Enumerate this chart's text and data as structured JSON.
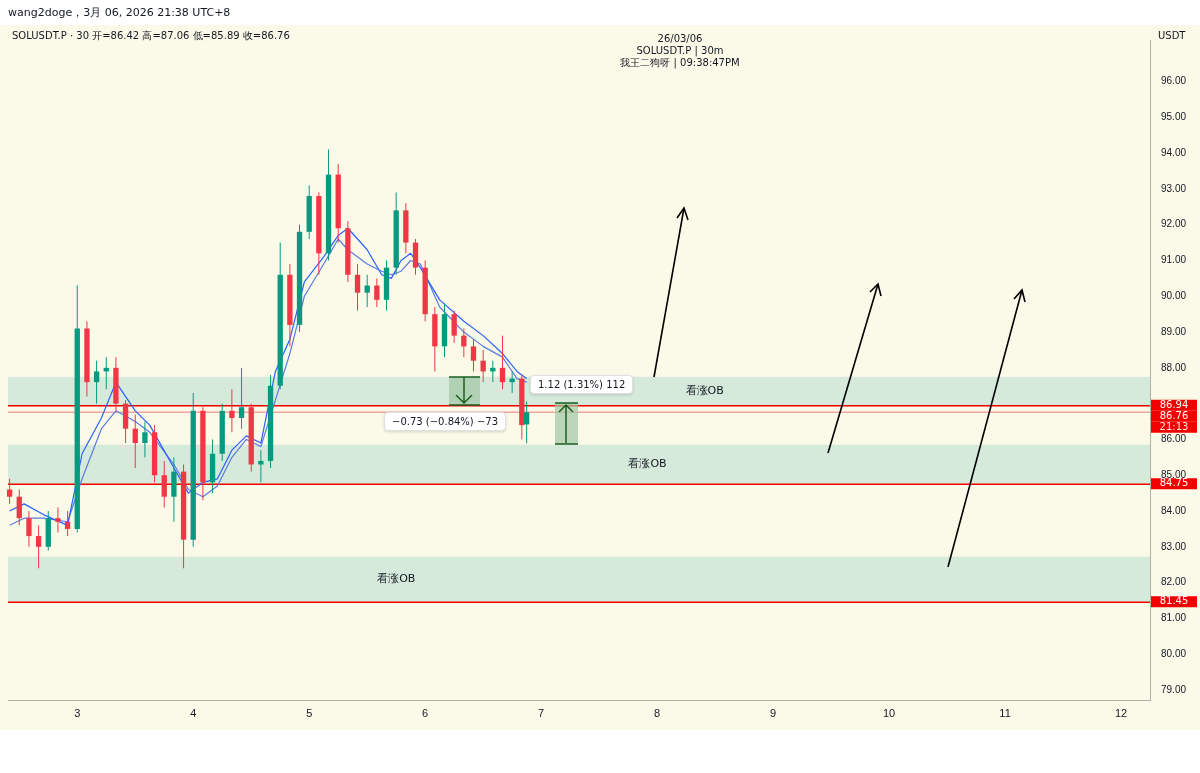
{
  "chart_data": {
    "type": "candlestick",
    "title": "SOLUSDT.P · 30 开=86.42 高=87.06 低=85.89 收=86.76",
    "subtitle": "wang2doge，3月 06, 2026 21:38 UTC+8",
    "ylabel": "USDT",
    "annotations": [
      "26/03/06",
      "SOLUSDT.P | 30m",
      "我王二狗呀 | 09:38:47PM",
      "21:13",
      "1.12 (1.31%) 112",
      "−0.73 (−0.84%) −73"
    ],
    "x": [
      "2026-03-02T10:00",
      "2026-03-02T12:00",
      "2026-03-02T14:00",
      "2026-03-02T16:00",
      "2026-03-02T18:00",
      "2026-03-02T20:00",
      "2026-03-02T22:00",
      "2026-03-03T00:00",
      "2026-03-03T02:00",
      "2026-03-03T04:00",
      "2026-03-03T06:00",
      "2026-03-03T08:00",
      "2026-03-03T10:00",
      "2026-03-03T12:00",
      "2026-03-03T14:00",
      "2026-03-03T16:00",
      "2026-03-03T18:00",
      "2026-03-03T20:00",
      "2026-03-03T22:00",
      "2026-03-04T00:00",
      "2026-03-04T02:00",
      "2026-03-04T04:00",
      "2026-03-04T06:00",
      "2026-03-04T08:00",
      "2026-03-04T10:00",
      "2026-03-04T12:00",
      "2026-03-04T14:00",
      "2026-03-04T16:00",
      "2026-03-04T18:00",
      "2026-03-04T20:00",
      "2026-03-04T22:00",
      "2026-03-05T00:00",
      "2026-03-05T02:00",
      "2026-03-05T04:00",
      "2026-03-05T06:00",
      "2026-03-05T08:00",
      "2026-03-05T10:00",
      "2026-03-05T12:00",
      "2026-03-05T14:00",
      "2026-03-05T16:00",
      "2026-03-05T18:00",
      "2026-03-05T20:00",
      "2026-03-05T22:00",
      "2026-03-06T00:00",
      "2026-03-06T02:00",
      "2026-03-06T04:00",
      "2026-03-06T06:00",
      "2026-03-06T08:00",
      "2026-03-06T10:00",
      "2026-03-06T12:00",
      "2026-03-06T14:00",
      "2026-03-06T16:00",
      "2026-03-06T18:00",
      "2026-03-06T20:00",
      "2026-03-06T21:00"
    ],
    "ohlc": [
      [
        84.6,
        84.9,
        84.2,
        84.4
      ],
      [
        84.4,
        84.6,
        83.6,
        83.8
      ],
      [
        83.8,
        84.0,
        83.0,
        83.3
      ],
      [
        83.3,
        83.6,
        82.4,
        83.0
      ],
      [
        83.0,
        84.0,
        82.9,
        83.8
      ],
      [
        83.8,
        84.1,
        83.4,
        83.7
      ],
      [
        83.7,
        84.0,
        83.3,
        83.5
      ],
      [
        83.5,
        90.3,
        83.4,
        89.1
      ],
      [
        89.1,
        89.3,
        87.2,
        87.6
      ],
      [
        87.6,
        88.2,
        87.0,
        87.9
      ],
      [
        87.9,
        88.3,
        87.4,
        88.0
      ],
      [
        88.0,
        88.3,
        86.8,
        87.0
      ],
      [
        87.0,
        87.1,
        85.9,
        86.3
      ],
      [
        86.3,
        86.7,
        85.2,
        85.9
      ],
      [
        85.9,
        86.5,
        85.5,
        86.2
      ],
      [
        86.2,
        86.4,
        84.8,
        85.0
      ],
      [
        85.0,
        85.4,
        84.1,
        84.4
      ],
      [
        84.4,
        85.5,
        83.7,
        85.1
      ],
      [
        85.1,
        85.3,
        82.4,
        83.2
      ],
      [
        83.2,
        87.3,
        83.0,
        86.8
      ],
      [
        86.8,
        86.9,
        84.3,
        84.8
      ],
      [
        84.8,
        86.0,
        84.5,
        85.6
      ],
      [
        85.6,
        87.0,
        85.4,
        86.8
      ],
      [
        86.8,
        87.4,
        86.2,
        86.6
      ],
      [
        86.6,
        88.0,
        86.3,
        86.9
      ],
      [
        86.9,
        87.0,
        85.1,
        85.3
      ],
      [
        85.3,
        85.7,
        84.8,
        85.4
      ],
      [
        85.4,
        87.8,
        85.2,
        87.5
      ],
      [
        87.5,
        91.5,
        87.4,
        90.6
      ],
      [
        90.6,
        90.9,
        88.6,
        89.2
      ],
      [
        89.2,
        92.0,
        89.0,
        91.8
      ],
      [
        91.8,
        93.1,
        91.6,
        92.8
      ],
      [
        92.8,
        92.9,
        90.6,
        91.2
      ],
      [
        91.2,
        94.1,
        91.0,
        93.4
      ],
      [
        93.4,
        93.7,
        91.5,
        91.9
      ],
      [
        91.9,
        92.1,
        90.4,
        90.6
      ],
      [
        90.6,
        90.9,
        89.6,
        90.1
      ],
      [
        90.1,
        90.6,
        89.7,
        90.3
      ],
      [
        90.3,
        90.5,
        89.7,
        89.9
      ],
      [
        89.9,
        91.0,
        89.6,
        90.8
      ],
      [
        90.8,
        92.9,
        90.6,
        92.4
      ],
      [
        92.4,
        92.6,
        91.2,
        91.5
      ],
      [
        91.5,
        91.6,
        90.6,
        90.8
      ],
      [
        90.8,
        91.0,
        89.3,
        89.5
      ],
      [
        89.5,
        89.7,
        87.9,
        88.6
      ],
      [
        88.6,
        89.8,
        88.3,
        89.5
      ],
      [
        89.5,
        89.6,
        88.7,
        88.9
      ],
      [
        88.9,
        89.1,
        88.3,
        88.6
      ],
      [
        88.6,
        88.8,
        87.9,
        88.2
      ],
      [
        88.2,
        88.5,
        87.6,
        87.9
      ],
      [
        87.9,
        88.2,
        87.6,
        88.0
      ],
      [
        88.0,
        88.9,
        87.4,
        87.6
      ],
      [
        87.6,
        87.9,
        87.3,
        87.7
      ],
      [
        87.7,
        87.8,
        86.0,
        86.4
      ],
      [
        86.42,
        87.06,
        85.89,
        86.76
      ]
    ],
    "colors": [
      "#f23645",
      "#f23645",
      "#f23645",
      "#f23645",
      "#089981",
      "#f23645",
      "#f23645",
      "#089981",
      "#f23645",
      "#089981",
      "#089981",
      "#f23645",
      "#f23645",
      "#f23645",
      "#089981",
      "#f23645",
      "#f23645",
      "#089981",
      "#f23645",
      "#089981",
      "#f23645",
      "#089981",
      "#089981",
      "#f23645",
      "#089981",
      "#f23645",
      "#089981",
      "#089981",
      "#089981",
      "#f23645",
      "#089981",
      "#089981",
      "#f23645",
      "#089981",
      "#f23645",
      "#f23645",
      "#f23645",
      "#089981",
      "#f23645",
      "#089981",
      "#089981",
      "#f23645",
      "#f23645",
      "#f23645",
      "#f23645",
      "#089981",
      "#f23645",
      "#f23645",
      "#f23645",
      "#f23645",
      "#089981",
      "#f23645",
      "#089981",
      "#f23645",
      "#089981"
    ],
    "series": [
      {
        "type": "line",
        "color": "#2962ff",
        "x": [
          "2026-03-02T10:00",
          "2026-03-02T13:00",
          "2026-03-02T17:00",
          "2026-03-02T22:00",
          "2026-03-03T01:00",
          "2026-03-03T05:00",
          "2026-03-03T08:00",
          "2026-03-03T12:00",
          "2026-03-03T15:00",
          "2026-03-03T20:00",
          "2026-03-03T23:00",
          "2026-03-04T02:00",
          "2026-03-04T05:00",
          "2026-03-04T08:00",
          "2026-03-04T11:00",
          "2026-03-04T14:00",
          "2026-03-04T17:00",
          "2026-03-04T20:00",
          "2026-03-04T23:00",
          "2026-03-05T03:00",
          "2026-03-05T06:00",
          "2026-03-05T08:00",
          "2026-03-05T12:00",
          "2026-03-05T15:00",
          "2026-03-05T17:00",
          "2026-03-05T19:00",
          "2026-03-05T21:00",
          "2026-03-05T23:00",
          "2026-03-06T03:00",
          "2026-03-06T08:00",
          "2026-03-06T12:00",
          "2026-03-06T16:00",
          "2026-03-06T19:00",
          "2026-03-06T21:00"
        ],
        "values": [
          84.0,
          84.2,
          83.9,
          83.6,
          85.6,
          86.6,
          87.6,
          86.8,
          86.4,
          85.2,
          84.5,
          84.8,
          84.9,
          85.7,
          86.1,
          85.9,
          87.9,
          88.8,
          90.4,
          91.1,
          91.7,
          91.9,
          91.3,
          90.6,
          90.5,
          91.0,
          91.2,
          90.8,
          89.9,
          89.3,
          88.9,
          88.4,
          87.9,
          87.7
        ]
      },
      {
        "type": "line",
        "color": "#5b7be0",
        "x": [
          "2026-03-02T10:00",
          "2026-03-02T13:00",
          "2026-03-02T17:00",
          "2026-03-02T22:00",
          "2026-03-03T01:00",
          "2026-03-03T05:00",
          "2026-03-03T08:00",
          "2026-03-03T12:00",
          "2026-03-03T15:00",
          "2026-03-03T20:00",
          "2026-03-03T23:00",
          "2026-03-04T02:00",
          "2026-03-04T05:00",
          "2026-03-04T08:00",
          "2026-03-04T11:00",
          "2026-03-04T14:00",
          "2026-03-04T17:00",
          "2026-03-04T20:00",
          "2026-03-04T23:00",
          "2026-03-05T03:00",
          "2026-03-05T06:00",
          "2026-03-05T08:00",
          "2026-03-05T12:00",
          "2026-03-05T15:00",
          "2026-03-05T17:00",
          "2026-03-05T19:00",
          "2026-03-05T21:00",
          "2026-03-05T23:00",
          "2026-03-06T03:00",
          "2026-03-06T08:00",
          "2026-03-06T12:00",
          "2026-03-06T16:00",
          "2026-03-06T19:00",
          "2026-03-06T21:00"
        ],
        "values": [
          83.6,
          83.8,
          83.8,
          83.7,
          84.9,
          86.3,
          86.8,
          86.5,
          86.2,
          85.3,
          84.6,
          84.4,
          84.7,
          85.5,
          86.0,
          85.8,
          87.1,
          88.4,
          90.0,
          90.9,
          91.6,
          91.3,
          90.9,
          90.7,
          90.6,
          90.7,
          91.0,
          90.9,
          89.7,
          89.0,
          88.6,
          88.3,
          87.7,
          87.6
        ]
      }
    ],
    "xlim": [
      "2026-03-02T09:40",
      "2026-03-12T06:00"
    ],
    "xticks": [
      {
        "value": "2026-03-03",
        "label": "3"
      },
      {
        "value": "2026-03-04",
        "label": "4"
      },
      {
        "value": "2026-03-05",
        "label": "5"
      },
      {
        "value": "2026-03-06",
        "label": "6"
      },
      {
        "value": "2026-03-07",
        "label": "7"
      },
      {
        "value": "2026-03-08",
        "label": "8"
      },
      {
        "value": "2026-03-09",
        "label": "9"
      },
      {
        "value": "2026-03-10",
        "label": "10"
      },
      {
        "value": "2026-03-11",
        "label": "11"
      },
      {
        "value": "2026-03-12",
        "label": "12"
      }
    ],
    "ylim": [
      78.72,
      97.16
    ],
    "yticks": [
      {
        "value": 79,
        "label": "79.00"
      },
      {
        "value": 80,
        "label": "80.00"
      },
      {
        "value": 81,
        "label": "81.00"
      },
      {
        "value": 82,
        "label": "82.00"
      },
      {
        "value": 83,
        "label": "83.00"
      },
      {
        "value": 84,
        "label": "84.00"
      },
      {
        "value": 85,
        "label": "85.00"
      },
      {
        "value": 86,
        "label": "86.00"
      },
      {
        "value": 87,
        "label": null
      },
      {
        "value": 88,
        "label": "88.00"
      },
      {
        "value": 89,
        "label": "89.00"
      },
      {
        "value": 90,
        "label": "90.00"
      },
      {
        "value": 91,
        "label": "91.00"
      },
      {
        "value": 92,
        "label": "92.00"
      },
      {
        "value": 93,
        "label": "93.00"
      },
      {
        "value": 94,
        "label": "94.00"
      },
      {
        "value": 95,
        "label": "95.00"
      },
      {
        "value": 96,
        "label": "96.00"
      }
    ],
    "bands": [
      {
        "axis": "y",
        "from": 86.94,
        "to": 87.75,
        "label": "看涨OB",
        "color": "#d5eadb"
      },
      {
        "axis": "y",
        "from": 84.75,
        "to": 85.85,
        "label": "看涨OB",
        "color": "#d5eadb"
      },
      {
        "axis": "y",
        "from": 81.45,
        "to": 82.72,
        "label": "看涨OB",
        "color": "#d5eadb"
      }
    ],
    "ref_lines": [
      {
        "axis": "y",
        "value": 86.94,
        "label": "86.94",
        "color": "#f20000"
      },
      {
        "axis": "y",
        "value": 86.76,
        "label": "86.76",
        "color": "#f5a3a3"
      },
      {
        "axis": "y",
        "value": 84.75,
        "label": "84.75",
        "color": "#f20000"
      },
      {
        "axis": "y",
        "value": 81.45,
        "label": "81.45",
        "color": "#f20000"
      }
    ]
  }
}
